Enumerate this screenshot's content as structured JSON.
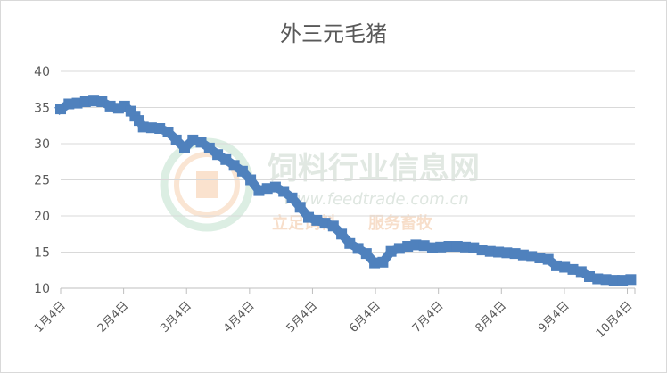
{
  "chart_data": {
    "type": "line",
    "title": "外三元毛猪",
    "xlabel": "",
    "ylabel": "",
    "ylim": [
      10,
      40
    ],
    "yticks": [
      10,
      15,
      20,
      25,
      30,
      35,
      40
    ],
    "xticks": [
      "1月4日",
      "2月4日",
      "3月4日",
      "4月4日",
      "5月4日",
      "6月4日",
      "7月4日",
      "8月4日",
      "9月4日",
      "10月4日"
    ],
    "x_range": [
      0,
      278
    ],
    "grid": true,
    "legend": "none",
    "series_color": "#4f81bd",
    "series": [
      {
        "x": [
          0,
          4,
          8,
          12,
          16,
          20,
          24,
          28,
          31,
          34,
          36,
          38,
          40,
          44,
          48,
          52,
          56,
          60,
          64,
          68,
          72,
          76,
          80,
          84,
          88,
          92,
          96,
          100,
          104,
          108,
          112,
          116,
          120,
          124,
          128,
          132,
          136,
          140,
          144,
          148,
          152,
          156,
          160,
          164,
          168,
          172,
          176,
          180,
          184,
          188,
          192,
          196,
          200,
          204,
          208,
          212,
          216,
          220,
          224,
          228,
          232,
          236,
          240,
          244,
          248,
          252,
          256,
          260,
          264,
          268,
          272,
          276
        ],
        "y": [
          34.8,
          35.5,
          35.6,
          35.8,
          35.9,
          35.8,
          35.2,
          34.9,
          35.2,
          34.5,
          33.8,
          33.2,
          32.3,
          32.2,
          32.1,
          31.6,
          30.5,
          29.4,
          30.5,
          30.2,
          29.4,
          28.5,
          27.8,
          27.0,
          26.2,
          25.0,
          23.5,
          23.8,
          24.0,
          23.4,
          22.5,
          21.2,
          19.8,
          19.4,
          19.0,
          18.6,
          17.5,
          16.2,
          15.5,
          14.8,
          13.5,
          13.6,
          15.1,
          15.5,
          15.8,
          16.0,
          15.9,
          15.6,
          15.7,
          15.8,
          15.8,
          15.7,
          15.6,
          15.3,
          15.1,
          15.0,
          14.9,
          14.8,
          14.6,
          14.4,
          14.2,
          14.0,
          13.1,
          12.9,
          12.6,
          12.3,
          11.6,
          11.3,
          11.2,
          11.1,
          11.1,
          11.2
        ]
      }
    ]
  }
}
